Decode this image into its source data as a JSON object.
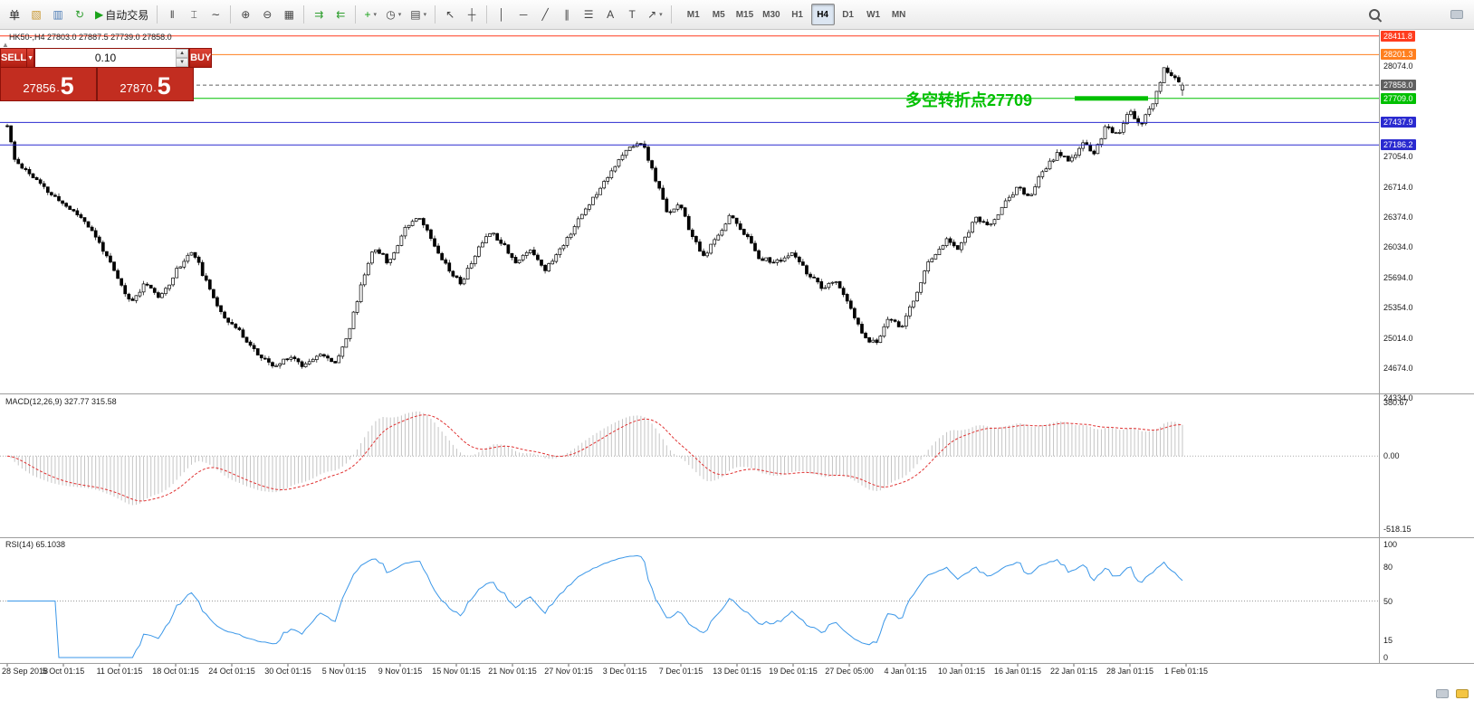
{
  "labels": {
    "symbol_header": "HK50-,H4 27803.0 27887.5 27739.0 27858.0",
    "macd": "MACD(12,26,9) 327.77 315.58",
    "rsi": "RSI(14) 65.1038"
  },
  "toolbar": {
    "items": [
      {
        "name": "new-order-button",
        "label": "单"
      },
      {
        "name": "new-chart-icon",
        "glyph": "▧",
        "color": "#c8962e"
      },
      {
        "name": "profiles-icon",
        "glyph": "▥",
        "color": "#4a7ab5"
      },
      {
        "name": "refresh-icon",
        "glyph": "↻",
        "color": "#2e9e2e"
      },
      {
        "name": "autotrading-button",
        "glyph": "▶",
        "color": "#1aa21a",
        "label": "自动交易"
      },
      {
        "sep": true
      },
      {
        "name": "bar-chart-icon",
        "glyph": "‖"
      },
      {
        "name": "candlestick-chart-icon",
        "glyph": "⌶"
      },
      {
        "name": "line-chart-icon",
        "glyph": "∼"
      },
      {
        "sep": true
      },
      {
        "name": "zoom-in-icon",
        "glyph": "⊕"
      },
      {
        "name": "zoom-out-icon",
        "glyph": "⊖"
      },
      {
        "name": "tile-windows-icon",
        "glyph": "▦"
      },
      {
        "sep": true
      },
      {
        "name": "chart-shift-icon",
        "glyph": "⇉",
        "color": "#2e9e2e"
      },
      {
        "name": "auto-scroll-icon",
        "glyph": "⇇",
        "color": "#2e9e2e"
      },
      {
        "sep": true
      },
      {
        "name": "indicators-icon",
        "glyph": "+",
        "color": "#1aa21a",
        "dropdown": true
      },
      {
        "name": "periods-icon",
        "glyph": "◷",
        "dropdown": true
      },
      {
        "name": "templates-icon",
        "glyph": "▤",
        "dropdown": true
      },
      {
        "sep": true
      },
      {
        "name": "cursor-icon",
        "glyph": "↖"
      },
      {
        "name": "crosshair-icon",
        "glyph": "┼"
      },
      {
        "sep": true
      },
      {
        "name": "vertical-line-icon",
        "glyph": "│"
      },
      {
        "name": "horizontal-line-icon",
        "glyph": "─"
      },
      {
        "name": "trendline-icon",
        "glyph": "╱"
      },
      {
        "name": "channel-icon",
        "glyph": "∥"
      },
      {
        "name": "fibonacci-icon",
        "glyph": "☰"
      },
      {
        "name": "text-icon",
        "glyph": "A"
      },
      {
        "name": "label-icon",
        "glyph": "T"
      },
      {
        "name": "arrows-icon",
        "glyph": "↗",
        "dropdown": true
      },
      {
        "sep": true
      }
    ],
    "timeframes": {
      "items": [
        "M1",
        "M5",
        "M15",
        "M30",
        "H1",
        "H4",
        "D1",
        "W1",
        "MN"
      ],
      "active": "H4"
    },
    "right_icons": [
      {
        "name": "search-icon"
      },
      {
        "name": "chat-icon"
      }
    ]
  },
  "trade_panel": {
    "sell_label": "SELL",
    "buy_label": "BUY",
    "lot_value": "0.10",
    "sell_price": "27856.5",
    "buy_price": "27870.5",
    "sell_price_main": "27856",
    "sell_price_point": ".",
    "sell_price_big": "5",
    "buy_price_main": "27870",
    "buy_price_point": ".",
    "buy_price_big": "5"
  },
  "annotation": {
    "text": "多空转折点27709",
    "color": "#00c000",
    "underline_price": 27709.0
  },
  "footer_icons": [
    {
      "name": "chat-gray-icon"
    },
    {
      "name": "chat-yellow-icon"
    }
  ],
  "chart_data": [
    {
      "id": "price",
      "type": "candlestick",
      "symbol": "HK50-",
      "timeframe": "H4",
      "current_bar": {
        "open": 27803.0,
        "high": 27887.5,
        "low": 27739.0,
        "close": 27858.0
      },
      "y_axis": {
        "range": [
          24400,
          28480
        ],
        "ticks": [
          "28074.0",
          "27054.0",
          "26714.0",
          "26374.0",
          "26034.0",
          "25694.0",
          "25354.0",
          "25014.0",
          "24674.0",
          "24334.0"
        ]
      },
      "x_axis": {
        "labels": [
          "28 Sep 2018",
          "5 Oct 01:15",
          "11 Oct 01:15",
          "18 Oct 01:15",
          "24 Oct 01:15",
          "30 Oct 01:15",
          "5 Nov 01:15",
          "9 Nov 01:15",
          "15 Nov 01:15",
          "21 Nov 01:15",
          "27 Nov 01:15",
          "3 Dec 01:15",
          "7 Dec 01:15",
          "13 Dec 01:15",
          "19 Dec 01:15",
          "27 Dec 05:00",
          "4 Jan 01:15",
          "10 Jan 01:15",
          "16 Jan 01:15",
          "22 Jan 01:15",
          "28 Jan 01:15",
          "1 Feb 01:15"
        ]
      },
      "levels": [
        {
          "label": "28411.8",
          "price": 28411.8,
          "color": "#ff3c1e"
        },
        {
          "label": "28201.3",
          "price": 28201.3,
          "color": "#ff7f1e"
        },
        {
          "label": "27858.0",
          "price": 27858.0,
          "color": "#606060",
          "style": "dashed"
        },
        {
          "label": "27709.0",
          "price": 27709.0,
          "color": "#00c000"
        },
        {
          "label": "27437.9",
          "price": 27437.9,
          "color": "#2a2ad0"
        },
        {
          "label": "27186.2",
          "price": 27186.2,
          "color": "#2a2ad0"
        }
      ],
      "approx_path_anchors": [
        [
          0.0,
          27400
        ],
        [
          0.006,
          27020
        ],
        [
          0.02,
          26850
        ],
        [
          0.035,
          26650
        ],
        [
          0.05,
          26500
        ],
        [
          0.065,
          26350
        ],
        [
          0.08,
          26050
        ],
        [
          0.095,
          25650
        ],
        [
          0.105,
          25400
        ],
        [
          0.118,
          25650
        ],
        [
          0.13,
          25450
        ],
        [
          0.145,
          25800
        ],
        [
          0.158,
          26000
        ],
        [
          0.172,
          25550
        ],
        [
          0.185,
          25250
        ],
        [
          0.2,
          25050
        ],
        [
          0.215,
          24800
        ],
        [
          0.228,
          24680
        ],
        [
          0.24,
          24820
        ],
        [
          0.252,
          24700
        ],
        [
          0.265,
          24850
        ],
        [
          0.278,
          24720
        ],
        [
          0.29,
          25050
        ],
        [
          0.302,
          25650
        ],
        [
          0.312,
          26050
        ],
        [
          0.325,
          25850
        ],
        [
          0.338,
          26250
        ],
        [
          0.35,
          26400
        ],
        [
          0.362,
          26100
        ],
        [
          0.375,
          25800
        ],
        [
          0.386,
          25620
        ],
        [
          0.397,
          25920
        ],
        [
          0.41,
          26220
        ],
        [
          0.422,
          26080
        ],
        [
          0.433,
          25850
        ],
        [
          0.445,
          26020
        ],
        [
          0.458,
          25780
        ],
        [
          0.47,
          26000
        ],
        [
          0.484,
          26300
        ],
        [
          0.5,
          26620
        ],
        [
          0.515,
          26920
        ],
        [
          0.53,
          27160
        ],
        [
          0.54,
          27220
        ],
        [
          0.552,
          26780
        ],
        [
          0.562,
          26420
        ],
        [
          0.572,
          26520
        ],
        [
          0.582,
          26180
        ],
        [
          0.592,
          25920
        ],
        [
          0.603,
          26120
        ],
        [
          0.615,
          26400
        ],
        [
          0.628,
          26180
        ],
        [
          0.64,
          25920
        ],
        [
          0.654,
          25860
        ],
        [
          0.668,
          25960
        ],
        [
          0.68,
          25760
        ],
        [
          0.694,
          25560
        ],
        [
          0.706,
          25660
        ],
        [
          0.718,
          25320
        ],
        [
          0.73,
          25000
        ],
        [
          0.74,
          24960
        ],
        [
          0.75,
          25260
        ],
        [
          0.76,
          25120
        ],
        [
          0.773,
          25480
        ],
        [
          0.785,
          25900
        ],
        [
          0.8,
          26120
        ],
        [
          0.81,
          26020
        ],
        [
          0.824,
          26360
        ],
        [
          0.835,
          26260
        ],
        [
          0.85,
          26560
        ],
        [
          0.86,
          26700
        ],
        [
          0.87,
          26600
        ],
        [
          0.88,
          26860
        ],
        [
          0.894,
          27100
        ],
        [
          0.905,
          27000
        ],
        [
          0.915,
          27200
        ],
        [
          0.925,
          27100
        ],
        [
          0.935,
          27400
        ],
        [
          0.945,
          27300
        ],
        [
          0.955,
          27560
        ],
        [
          0.965,
          27420
        ],
        [
          0.975,
          27660
        ],
        [
          0.985,
          28060
        ],
        [
          0.992,
          27940
        ],
        [
          1.0,
          27858
        ]
      ],
      "render": {
        "count": 320,
        "seed": 11,
        "wiggle": 52,
        "wick": 36
      }
    },
    {
      "id": "macd",
      "type": "bar",
      "title": "MACD(12,26,9)",
      "current_values": [
        327.77,
        315.58
      ],
      "y_axis": {
        "range": [
          -518.15,
          380.67
        ],
        "ticks": [
          "380.67",
          "0.00",
          "-518.15"
        ]
      },
      "series": [
        {
          "name": "MACD histogram",
          "derived_from": "EMA12-EMA26 of closes",
          "color": "#c4c4c4"
        },
        {
          "name": "Signal",
          "derived_from": "EMA9 of MACD",
          "color": "#e03232",
          "style": "dashed"
        }
      ]
    },
    {
      "id": "rsi",
      "type": "line",
      "title": "RSI(14)",
      "current_value": 65.1038,
      "y_axis": {
        "range": [
          0,
          100
        ],
        "ticks": [
          "100",
          "80",
          "50",
          "15",
          "0"
        ]
      },
      "level_lines": [
        50
      ],
      "color": "#3b97e8"
    }
  ]
}
